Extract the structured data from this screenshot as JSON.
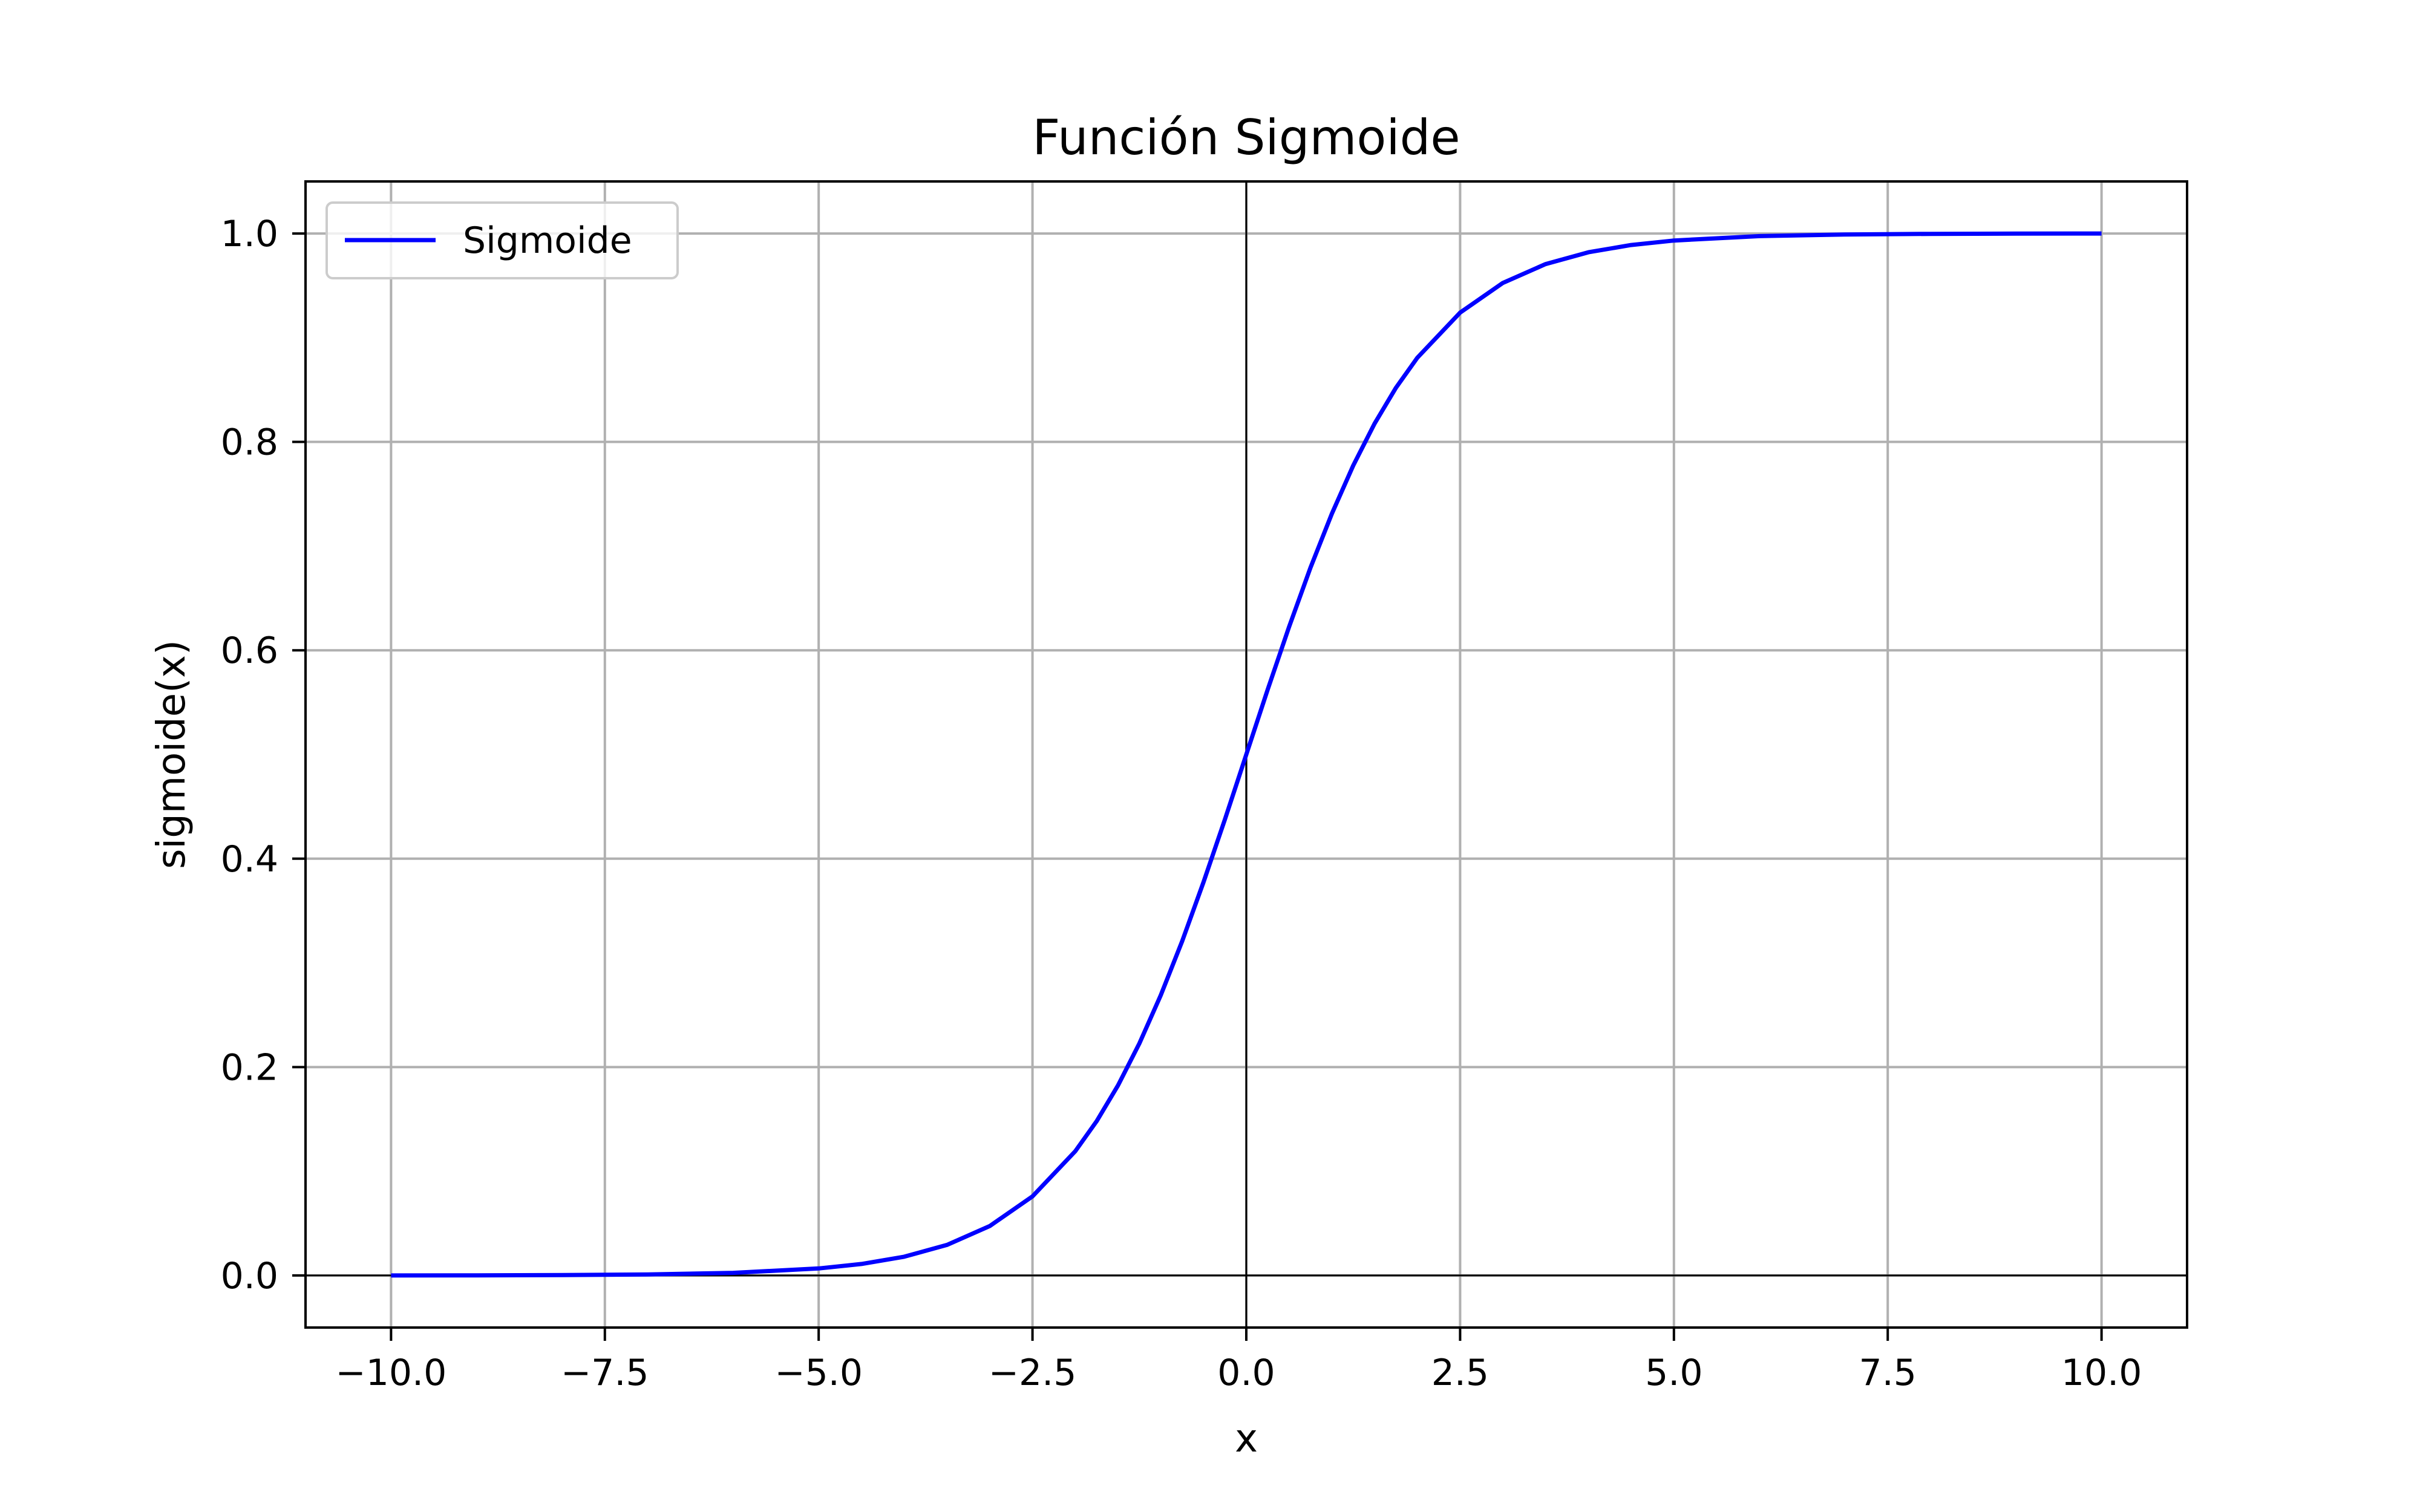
{
  "chart_data": {
    "type": "line",
    "title": "Función Sigmoide",
    "xlabel": "x",
    "ylabel": "sigmoide(x)",
    "xlim": [
      -11.0,
      11.0
    ],
    "ylim": [
      -0.05,
      1.05
    ],
    "xticks": [
      -10.0,
      -7.5,
      -5.0,
      -2.5,
      0.0,
      2.5,
      5.0,
      7.5,
      10.0
    ],
    "xtick_labels": [
      "−10.0",
      "−7.5",
      "−5.0",
      "−2.5",
      "0.0",
      "2.5",
      "5.0",
      "7.5",
      "10.0"
    ],
    "yticks": [
      0.0,
      0.2,
      0.4,
      0.6,
      0.8,
      1.0
    ],
    "ytick_labels": [
      "0.0",
      "0.2",
      "0.4",
      "0.6",
      "0.8",
      "1.0"
    ],
    "grid": true,
    "legend": {
      "position": "upper-left"
    },
    "reference_lines": {
      "x": 0,
      "y": 0,
      "color": "#000000"
    },
    "series": [
      {
        "name": "Sigmoide",
        "color": "#0000ff",
        "x": [
          -10.0,
          -9.0,
          -8.0,
          -7.0,
          -6.0,
          -5.0,
          -4.5,
          -4.0,
          -3.5,
          -3.0,
          -2.5,
          -2.0,
          -1.75,
          -1.5,
          -1.25,
          -1.0,
          -0.75,
          -0.5,
          -0.25,
          0.0,
          0.25,
          0.5,
          0.75,
          1.0,
          1.25,
          1.5,
          1.75,
          2.0,
          2.5,
          3.0,
          3.5,
          4.0,
          4.5,
          5.0,
          6.0,
          7.0,
          8.0,
          9.0,
          10.0
        ],
        "y": [
          0.0,
          0.0001,
          0.0003,
          0.0009,
          0.0025,
          0.0067,
          0.011,
          0.018,
          0.0293,
          0.0474,
          0.0759,
          0.1192,
          0.148,
          0.1824,
          0.2227,
          0.2689,
          0.3208,
          0.3775,
          0.4378,
          0.5,
          0.5622,
          0.6225,
          0.6792,
          0.7311,
          0.7773,
          0.8176,
          0.852,
          0.8808,
          0.9241,
          0.9526,
          0.9707,
          0.982,
          0.989,
          0.9933,
          0.9975,
          0.9991,
          0.9997,
          0.9999,
          1.0
        ]
      }
    ]
  }
}
